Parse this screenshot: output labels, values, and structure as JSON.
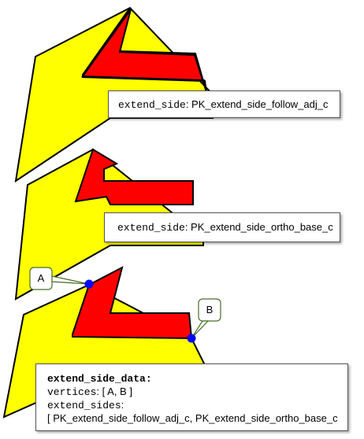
{
  "colors": {
    "yellow_fill": "#ffff00",
    "red_fill": "#ff0000",
    "outline": "#000000",
    "vertex": "#0000ff",
    "callout_border": "#4a6e2a"
  },
  "panel1": {
    "label_key": "extend_side",
    "label_value": ": PK_extend_side_follow_adj_c"
  },
  "panel2": {
    "label_key": "extend_side",
    "label_value": ": PK_extend_side_ortho_base_c"
  },
  "panel3": {
    "vertex_a": "A",
    "vertex_b": "B",
    "data_title": "extend_side_data:",
    "vertices_key": "vertices",
    "vertices_value": ": [ A, B ]",
    "sides_key": "extend_sides",
    "sides_colon": ":",
    "sides_value": "[ PK_extend_side_follow_adj_c, PK_extend_side_ortho_base_c"
  }
}
